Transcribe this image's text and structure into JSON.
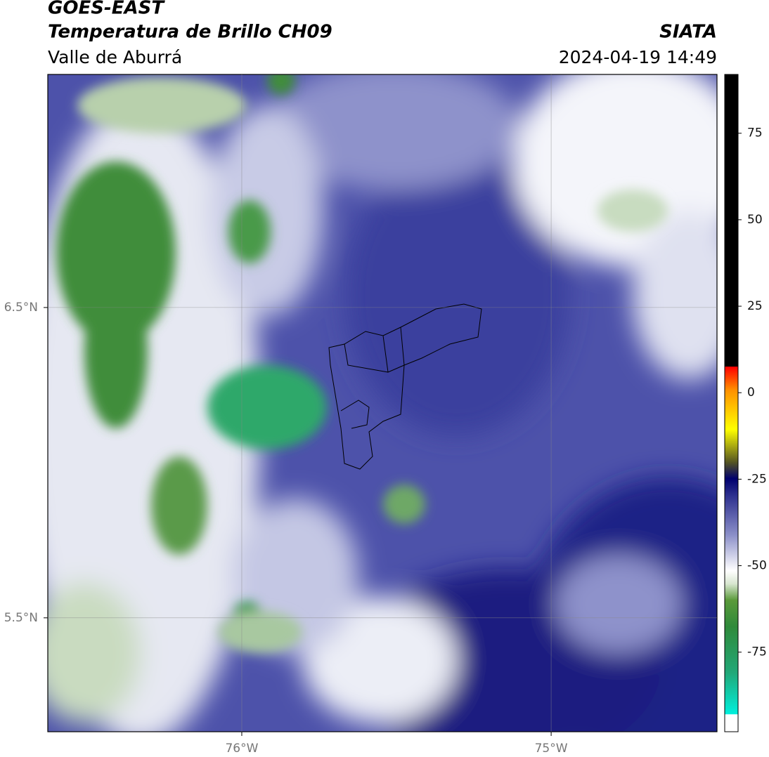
{
  "header": {
    "title": "GOES-EAST",
    "subtitle": "Temperatura de Brillo CH09",
    "region": "Valle de Aburrá",
    "source": "SIATA",
    "datetime": "2024-04-19 14:49"
  },
  "map": {
    "xlim": [
      -76.627,
      -74.464
    ],
    "ylim": [
      5.133,
      7.251
    ],
    "xticks": [
      {
        "value": -76,
        "label": "76°W"
      },
      {
        "value": -75,
        "label": "75°W"
      }
    ],
    "yticks": [
      {
        "value": 6.5,
        "label": "6.5°N"
      },
      {
        "value": 5.5,
        "label": "5.5°N"
      }
    ],
    "grid": true
  },
  "colorbar": {
    "lim": [
      -98,
      92
    ],
    "ticks": [
      75,
      50,
      25,
      0,
      -25,
      -50,
      -75
    ]
  }
}
